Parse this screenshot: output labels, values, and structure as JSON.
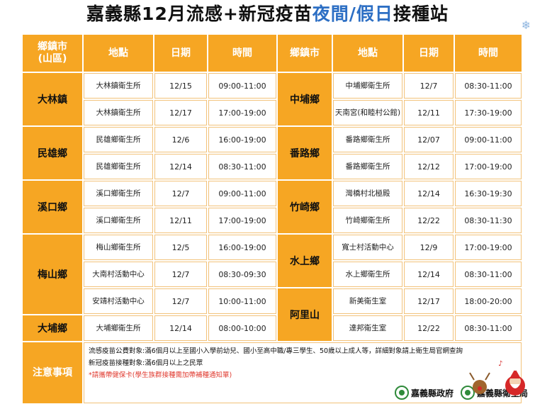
{
  "title": {
    "part1": "嘉義縣12月流感+新冠疫苗",
    "part2": "夜間/假日",
    "part3": "接種站"
  },
  "headers": {
    "town": "鄉鎮市",
    "town_sub": "(山區)",
    "place": "地點",
    "date": "日期",
    "time": "時間",
    "town_right": "鄉鎮市"
  },
  "left": [
    {
      "town": "大林鎮",
      "rows": [
        {
          "place": "大林鎮衛生所",
          "date": "12/15",
          "time": "09:00-11:00"
        },
        {
          "place": "大林鎮衛生所",
          "date": "12/17",
          "time": "17:00-19:00"
        }
      ]
    },
    {
      "town": "民雄鄉",
      "rows": [
        {
          "place": "民雄鄉衛生所",
          "date": "12/6",
          "time": "16:00-19:00"
        },
        {
          "place": "民雄鄉衛生所",
          "date": "12/14",
          "time": "08:30-11:00"
        }
      ]
    },
    {
      "town": "溪口鄉",
      "rows": [
        {
          "place": "溪口鄉衛生所",
          "date": "12/7",
          "time": "09:00-11:00"
        },
        {
          "place": "溪口鄉衛生所",
          "date": "12/11",
          "time": "17:00-19:00"
        }
      ]
    },
    {
      "town": "梅山鄉",
      "rows": [
        {
          "place": "梅山鄉衛生所",
          "date": "12/5",
          "time": "16:00-19:00"
        },
        {
          "place": "大南村活動中心",
          "date": "12/7",
          "time": "08:30-09:30"
        },
        {
          "place": "安靖村活動中心",
          "date": "12/7",
          "time": "10:00-11:00"
        }
      ]
    },
    {
      "town": "大埔鄉",
      "rows": [
        {
          "place": "大埔鄉衛生所",
          "date": "12/14",
          "time": "08:00-10:00"
        }
      ]
    }
  ],
  "right": [
    {
      "town": "中埔鄉",
      "rows": [
        {
          "place": "中埔鄉衛生所",
          "date": "12/7",
          "time": "08:30-11:00"
        },
        {
          "place": "天南宮(和睦村公館)",
          "date": "12/11",
          "time": "17:30-19:00"
        }
      ]
    },
    {
      "town": "番路鄉",
      "rows": [
        {
          "place": "番路鄉衛生所",
          "date": "12/07",
          "time": "09:00-11:00"
        },
        {
          "place": "番路鄉衛生所",
          "date": "12/12",
          "time": "17:00-19:00"
        }
      ]
    },
    {
      "town": "竹崎鄉",
      "rows": [
        {
          "place": "灣橋村北極殿",
          "date": "12/14",
          "time": "16:30-19:30"
        },
        {
          "place": "竹崎鄉衛生所",
          "date": "12/22",
          "time": "08:30-11:30"
        }
      ]
    },
    {
      "town": "水上鄉",
      "rows": [
        {
          "place": "寬士村活動中心",
          "date": "12/9",
          "time": "17:00-19:00"
        },
        {
          "place": "水上鄉衛生所",
          "date": "12/14",
          "time": "08:30-11:00"
        }
      ]
    },
    {
      "town": "阿里山",
      "rows": [
        {
          "place": "新美衛生室",
          "date": "12/17",
          "time": "18:00-20:00"
        },
        {
          "place": "達邦衛生室",
          "date": "12/22",
          "time": "08:30-11:00"
        }
      ]
    }
  ],
  "notes": {
    "heading": "注意事項",
    "line1": "流感疫苗公費對象:滿6個月以上至國小入學前幼兒、國小至高中職/專三學生、50歲以上成人等，詳細對象請上衛生局官網查詢",
    "line2": "新冠疫苗接種對象:滿6個月以上之民眾",
    "warning": "*請攜帶健保卡(學生族群接種需加帶補種通知單)"
  },
  "logos": {
    "gov": "嘉義縣政府",
    "health": "嘉義縣衛生局"
  },
  "colors": {
    "header": "#f6a623",
    "accent_blue": "#2d6fc4",
    "warning": "#e03a2f"
  }
}
